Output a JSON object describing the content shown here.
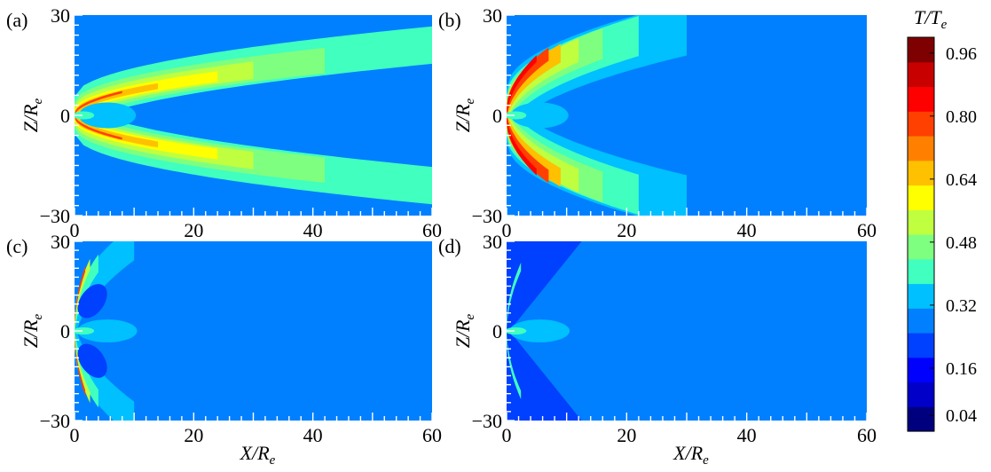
{
  "figure": {
    "colorbar": {
      "label_main": "T/T",
      "label_sub": "e",
      "min": 0.0,
      "max": 1.0,
      "ticks": [
        "0.96",
        "0.80",
        "0.64",
        "0.48",
        "0.32",
        "0.16",
        "0.04"
      ],
      "colors": [
        "#00007f",
        "#0000c8",
        "#0000ff",
        "#0040ff",
        "#0080ff",
        "#00c0ff",
        "#40ffbf",
        "#7fff7f",
        "#bfff40",
        "#ffff00",
        "#ffc000",
        "#ff8000",
        "#ff4000",
        "#ff0000",
        "#c80000",
        "#7f0000"
      ]
    }
  },
  "chart_data": [
    {
      "type": "heatmap",
      "panel_label": "(a)",
      "xlabel": "X/R",
      "xlabel_sub": "e",
      "ylabel": "Z/R",
      "ylabel_sub": "e",
      "xlim": [
        0,
        60
      ],
      "ylim": [
        -30,
        30
      ],
      "xticks": [
        "0",
        "20",
        "40",
        "60"
      ],
      "yticks": [
        "30",
        "0",
        "−30"
      ],
      "background_value": 0.3,
      "regions": [
        {
          "kind": "band",
          "value": 0.38,
          "slope": 0.46,
          "width": 5.6,
          "reach": 60
        },
        {
          "kind": "band",
          "value": 0.45,
          "slope": 0.4,
          "width": 3.8,
          "reach": 42
        },
        {
          "kind": "band",
          "value": 0.52,
          "slope": 0.38,
          "width": 2.6,
          "reach": 30
        },
        {
          "kind": "band",
          "value": 0.6,
          "slope": 0.35,
          "width": 1.6,
          "reach": 24
        },
        {
          "kind": "band",
          "value": 0.66,
          "slope": 0.34,
          "width": 0.9,
          "reach": 14
        },
        {
          "kind": "band",
          "value": 0.76,
          "slope": 0.38,
          "width": 0.35,
          "reach": 8
        },
        {
          "kind": "ellipse",
          "value": 0.35,
          "cx": 5.5,
          "cy": 0,
          "rx": 4.8,
          "ry": 1.6
        },
        {
          "kind": "ellipse",
          "value": 0.42,
          "cx": 1.5,
          "cy": 0,
          "rx": 1.8,
          "ry": 0.5
        }
      ]
    },
    {
      "type": "heatmap",
      "panel_label": "(b)",
      "xlabel": "X/R",
      "xlabel_sub": "e",
      "ylabel": "Z/R",
      "ylabel_sub": "e",
      "xlim": [
        0,
        60
      ],
      "ylim": [
        -30,
        30
      ],
      "xticks": [
        "0",
        "20",
        "40",
        "60"
      ],
      "yticks": [
        "30",
        "0",
        "−30"
      ],
      "background_value": 0.3,
      "regions": [
        {
          "kind": "band",
          "value": 0.34,
          "slope": 1.4,
          "width": 8.0,
          "reach": 30
        },
        {
          "kind": "band",
          "value": 0.4,
          "slope": 1.6,
          "width": 6.0,
          "reach": 22
        },
        {
          "kind": "band",
          "value": 0.48,
          "slope": 1.8,
          "width": 4.6,
          "reach": 16
        },
        {
          "kind": "band",
          "value": 0.56,
          "slope": 2.0,
          "width": 3.6,
          "reach": 12
        },
        {
          "kind": "band",
          "value": 0.66,
          "slope": 2.4,
          "width": 2.8,
          "reach": 9
        },
        {
          "kind": "band",
          "value": 0.78,
          "slope": 3.0,
          "width": 2.0,
          "reach": 7
        },
        {
          "kind": "band",
          "value": 0.86,
          "slope": 3.6,
          "width": 1.0,
          "reach": 5
        },
        {
          "kind": "ellipse",
          "value": 0.35,
          "cx": 5.5,
          "cy": 0,
          "rx": 4.8,
          "ry": 1.6
        },
        {
          "kind": "ellipse",
          "value": 0.42,
          "cx": 1.5,
          "cy": 0,
          "rx": 1.8,
          "ry": 0.5
        }
      ]
    },
    {
      "type": "heatmap",
      "panel_label": "(c)",
      "xlabel": "X/R",
      "xlabel_sub": "e",
      "ylabel": "Z/R",
      "ylabel_sub": "e",
      "xlim": [
        0,
        60
      ],
      "ylim": [
        -30,
        30
      ],
      "xticks": [
        "0",
        "20",
        "40",
        "60"
      ],
      "yticks": [
        "30",
        "0",
        "−30"
      ],
      "background_value": 0.3,
      "regions": [
        {
          "kind": "band",
          "value": 0.33,
          "slope": 5.5,
          "width": 6.0,
          "reach": 10
        },
        {
          "kind": "band",
          "value": 0.4,
          "slope": 8.0,
          "width": 3.0,
          "reach": 4
        },
        {
          "kind": "band",
          "value": 0.56,
          "slope": 12.0,
          "width": 1.8,
          "reach": 2.6
        },
        {
          "kind": "band",
          "value": 0.8,
          "slope": 15.0,
          "width": 1.0,
          "reach": 1.8
        },
        {
          "kind": "lobe",
          "value": 0.22,
          "cx": 3.0,
          "cy": 10.0,
          "rx": 3.2,
          "ry": 1.0,
          "angle": -55
        },
        {
          "kind": "lobe",
          "value": 0.22,
          "cx": 3.0,
          "cy": -10.0,
          "rx": 3.2,
          "ry": 1.0,
          "angle": 55
        },
        {
          "kind": "ellipse",
          "value": 0.35,
          "cx": 5.5,
          "cy": 0,
          "rx": 5.0,
          "ry": 1.6
        },
        {
          "kind": "ellipse",
          "value": 0.42,
          "cx": 1.5,
          "cy": 0,
          "rx": 1.8,
          "ry": 0.5
        }
      ]
    },
    {
      "type": "heatmap",
      "panel_label": "(d)",
      "xlabel": "X/R",
      "xlabel_sub": "e",
      "ylabel": "Z/R",
      "ylabel_sub": "e",
      "xlim": [
        0,
        60
      ],
      "ylim": [
        -30,
        30
      ],
      "xticks": [
        "0",
        "20",
        "40",
        "60"
      ],
      "yticks": [
        "30",
        "0",
        "−30"
      ],
      "background_value": 0.3,
      "regions": [
        {
          "kind": "wedge",
          "value": 0.24,
          "x_top": 12.5,
          "x_bottom": 12.5,
          "apex_z": 0.8
        },
        {
          "kind": "band",
          "value": 0.4,
          "slope": 12.0,
          "width": 1.4,
          "reach": 2.4
        },
        {
          "kind": "ellipse",
          "value": 0.35,
          "cx": 5.5,
          "cy": 0,
          "rx": 5.0,
          "ry": 1.6
        },
        {
          "kind": "ellipse",
          "value": 0.42,
          "cx": 1.5,
          "cy": 0,
          "rx": 1.8,
          "ry": 0.5
        }
      ]
    }
  ]
}
